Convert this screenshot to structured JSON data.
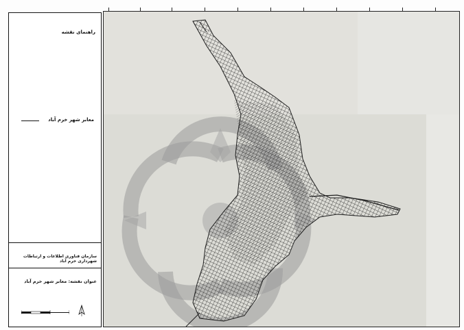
{
  "map": {
    "legend": {
      "title": "راهنمای نقشه",
      "items": [
        {
          "label": "معابر شهر خرم آباد",
          "symbol": "line"
        }
      ],
      "organization": "سازمان فناوری اطلاعات و ارتباطات شهرداری خرم آباد",
      "map_title": "عنوان نقشه: معابر شهر خرم آباد",
      "icons": [
        "scale-bar-icon",
        "north-arrow-icon",
        "watermark-logo"
      ]
    },
    "colors": {
      "frame": "#111111",
      "basemap": "#d9d9d4",
      "streets": "#1e1e1e",
      "watermark": "#9a9a9a"
    }
  }
}
